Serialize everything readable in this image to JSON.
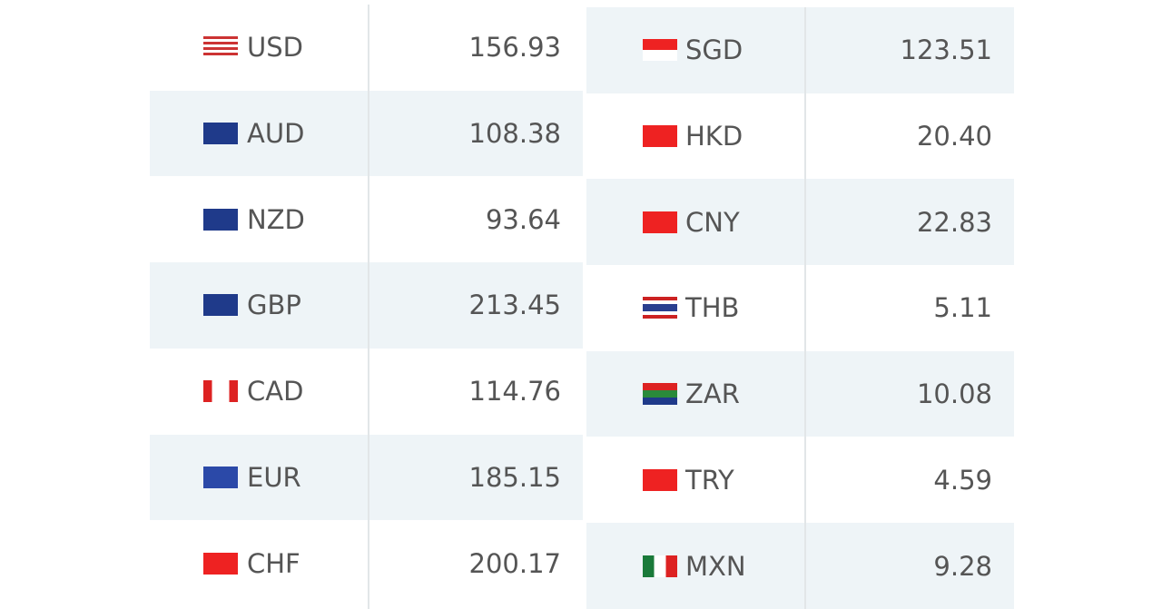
{
  "left": {
    "rows": [
      {
        "currency": "USD",
        "rate": "156.93"
      },
      {
        "currency": "AUD",
        "rate": "108.38"
      },
      {
        "currency": "NZD",
        "rate": "93.64"
      },
      {
        "currency": "GBP",
        "rate": "213.45"
      },
      {
        "currency": "CAD",
        "rate": "114.76"
      },
      {
        "currency": "EUR",
        "rate": "185.15"
      },
      {
        "currency": "CHF",
        "rate": "200.17"
      }
    ]
  },
  "right": {
    "rows": [
      {
        "currency": "SGD",
        "rate": "123.51"
      },
      {
        "currency": "HKD",
        "rate": "20.40"
      },
      {
        "currency": "CNY",
        "rate": "22.83"
      },
      {
        "currency": "THB",
        "rate": "5.11"
      },
      {
        "currency": "ZAR",
        "rate": "10.08"
      },
      {
        "currency": "TRY",
        "rate": "4.59"
      },
      {
        "currency": "MXN",
        "rate": "9.28"
      }
    ]
  }
}
